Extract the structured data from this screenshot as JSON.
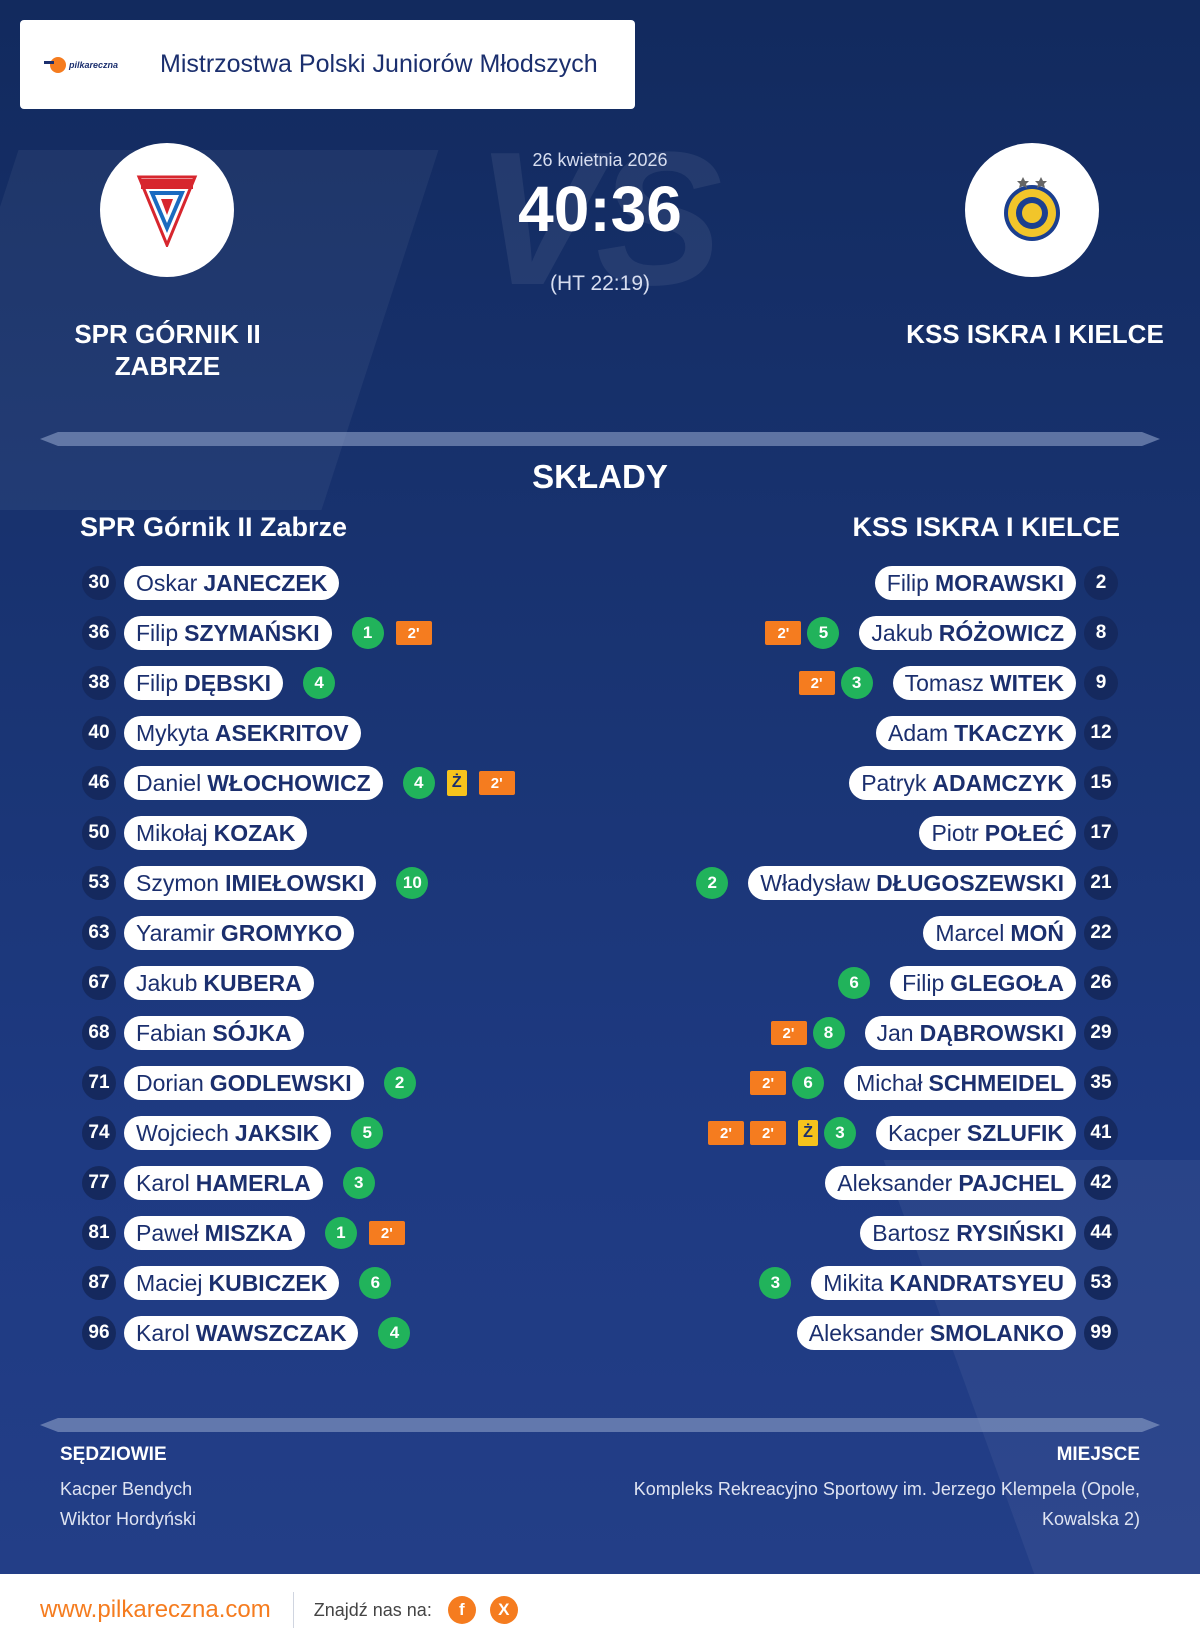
{
  "header": {
    "brand_text": "pilkareczna",
    "competition": "Mistrzostwa Polski Juniorów Młodszych"
  },
  "match": {
    "date": "26 kwietnia 2026",
    "score": "40:36",
    "halftime": "(HT 22:19)",
    "vs_watermark": "VS",
    "home_name": "SPR GÓRNIK II ZABRZE",
    "away_name": "KSS ISKRA I KIELCE"
  },
  "lineups": {
    "title": "SKŁADY",
    "home_team": "SPR Górnik II Zabrze",
    "away_team": "KSS ISKRA I KIELCE",
    "home": [
      {
        "number": "30",
        "first": "Oskar",
        "last": "JANECZEK",
        "goals": "",
        "yellow": "",
        "susp": []
      },
      {
        "number": "36",
        "first": "Filip",
        "last": "SZYMAŃSKI",
        "goals": "1",
        "yellow": "",
        "susp": [
          "2'"
        ]
      },
      {
        "number": "38",
        "first": "Filip",
        "last": "DĘBSKI",
        "goals": "4",
        "yellow": "",
        "susp": []
      },
      {
        "number": "40",
        "first": "Mykyta",
        "last": "ASEKRITOV",
        "goals": "",
        "yellow": "",
        "susp": []
      },
      {
        "number": "46",
        "first": "Daniel",
        "last": "WŁOCHOWICZ",
        "goals": "4",
        "yellow": "Ż",
        "susp": [
          "2'"
        ]
      },
      {
        "number": "50",
        "first": "Mikołaj",
        "last": "KOZAK",
        "goals": "",
        "yellow": "",
        "susp": []
      },
      {
        "number": "53",
        "first": "Szymon",
        "last": "IMIEŁOWSKI",
        "goals": "10",
        "yellow": "",
        "susp": []
      },
      {
        "number": "63",
        "first": "Yaramir",
        "last": "GROMYKO",
        "goals": "",
        "yellow": "",
        "susp": []
      },
      {
        "number": "67",
        "first": "Jakub",
        "last": "KUBERA",
        "goals": "",
        "yellow": "",
        "susp": []
      },
      {
        "number": "68",
        "first": "Fabian",
        "last": "SÓJKA",
        "goals": "",
        "yellow": "",
        "susp": []
      },
      {
        "number": "71",
        "first": "Dorian",
        "last": "GODLEWSKI",
        "goals": "2",
        "yellow": "",
        "susp": []
      },
      {
        "number": "74",
        "first": "Wojciech",
        "last": "JAKSIK",
        "goals": "5",
        "yellow": "",
        "susp": []
      },
      {
        "number": "77",
        "first": "Karol",
        "last": "HAMERLA",
        "goals": "3",
        "yellow": "",
        "susp": []
      },
      {
        "number": "81",
        "first": "Paweł",
        "last": "MISZKA",
        "goals": "1",
        "yellow": "",
        "susp": [
          "2'"
        ]
      },
      {
        "number": "87",
        "first": "Maciej",
        "last": "KUBICZEK",
        "goals": "6",
        "yellow": "",
        "susp": []
      },
      {
        "number": "96",
        "first": "Karol",
        "last": "WAWSZCZAK",
        "goals": "4",
        "yellow": "",
        "susp": []
      }
    ],
    "away": [
      {
        "number": "2",
        "first": "Filip",
        "last": "MORAWSKI",
        "goals": "",
        "yellow": "",
        "susp": []
      },
      {
        "number": "8",
        "first": "Jakub",
        "last": "RÓŻOWICZ",
        "goals": "5",
        "yellow": "",
        "susp": [
          "2'"
        ]
      },
      {
        "number": "9",
        "first": "Tomasz",
        "last": "WITEK",
        "goals": "3",
        "yellow": "",
        "susp": [
          "2'"
        ]
      },
      {
        "number": "12",
        "first": "Adam",
        "last": "TKACZYK",
        "goals": "",
        "yellow": "",
        "susp": []
      },
      {
        "number": "15",
        "first": "Patryk",
        "last": "ADAMCZYK",
        "goals": "",
        "yellow": "",
        "susp": []
      },
      {
        "number": "17",
        "first": "Piotr",
        "last": "POŁEĆ",
        "goals": "",
        "yellow": "",
        "susp": []
      },
      {
        "number": "21",
        "first": "Władysław",
        "last": "DŁUGOSZEWSKI",
        "goals": "2",
        "yellow": "",
        "susp": []
      },
      {
        "number": "22",
        "first": "Marcel",
        "last": "MOŃ",
        "goals": "",
        "yellow": "",
        "susp": []
      },
      {
        "number": "26",
        "first": "Filip",
        "last": "GLEGOŁA",
        "goals": "6",
        "yellow": "",
        "susp": []
      },
      {
        "number": "29",
        "first": "Jan",
        "last": "DĄBROWSKI",
        "goals": "8",
        "yellow": "",
        "susp": [
          "2'"
        ]
      },
      {
        "number": "35",
        "first": "Michał",
        "last": "SCHMEIDEL",
        "goals": "6",
        "yellow": "",
        "susp": [
          "2'"
        ]
      },
      {
        "number": "41",
        "first": "Kacper",
        "last": "SZLUFIK",
        "goals": "3",
        "yellow": "Ż",
        "susp": [
          "2'",
          "2'"
        ]
      },
      {
        "number": "42",
        "first": "Aleksander",
        "last": "PAJCHEL",
        "goals": "",
        "yellow": "",
        "susp": []
      },
      {
        "number": "44",
        "first": "Bartosz",
        "last": "RYSIŃSKI",
        "goals": "",
        "yellow": "",
        "susp": []
      },
      {
        "number": "53",
        "first": "Mikita",
        "last": "KANDRATSYEU",
        "goals": "3",
        "yellow": "",
        "susp": []
      },
      {
        "number": "99",
        "first": "Aleksander",
        "last": "SMOLANKO",
        "goals": "",
        "yellow": "",
        "susp": []
      }
    ]
  },
  "officials": {
    "label": "SĘDZIOWIE",
    "referees": [
      "Kacper Bendych",
      "Wiktor Hordyński"
    ]
  },
  "venue": {
    "label": "MIEJSCE",
    "text": "Kompleks Rekreacyjno Sportowy im. Jerzego Klempela (Opole, Kowalska 2)"
  },
  "footer": {
    "site": "www.pilkareczna.com",
    "find_us": "Znajdź nas na:",
    "social": [
      {
        "icon": "facebook-icon",
        "glyph": "f"
      },
      {
        "icon": "x-icon",
        "glyph": "X"
      }
    ]
  },
  "colors": {
    "background": "#1b2f6e",
    "accent": "#f57c1f",
    "goal": "#21b35b",
    "yellow_card": "#f6c31c"
  }
}
